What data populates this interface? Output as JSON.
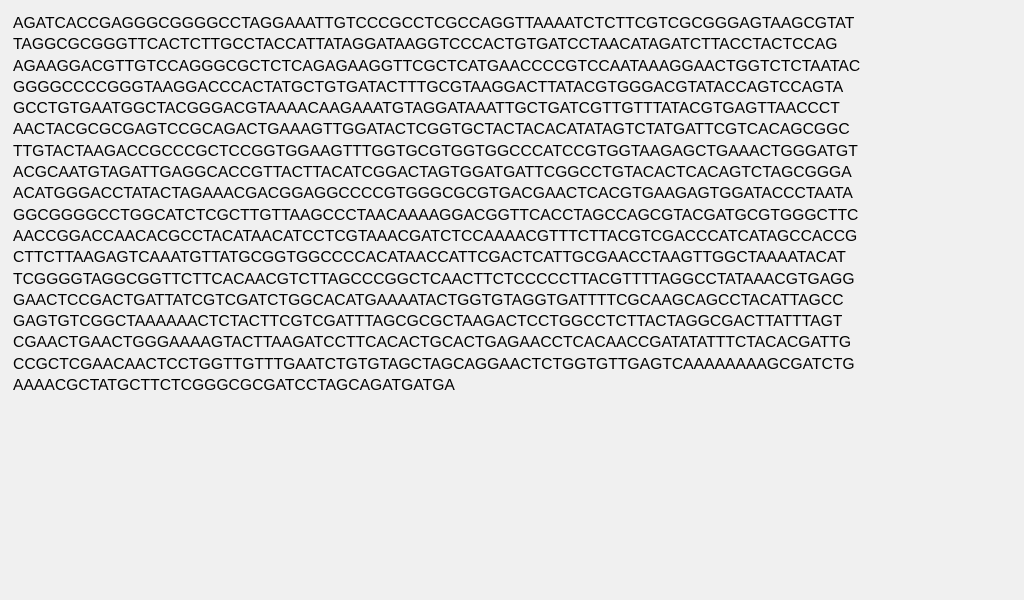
{
  "sequence": {
    "lines": [
      "AGATCACCGAGGGCGGGGCCTAGGAAATTGTCCCGCCTCGCCAGGTTAAAATCTCTTCGTCGCGGGAGTAAGCGTAT",
      "TAGGCGCGGGTTCACTCTTGCCTACCATTATAGGATAAGGTCCCACTGTGATCCTAACATAGATCTTACCTACTCCAG",
      "AGAAGGACGTTGTCCAGGGCGCTCTCAGAGAAGGTTCGCTCATGAACCCCGTCCAATAAAGGAACTGGTCTCTAATAC",
      "GGGGCCCCGGGTAAGGACCCACTATGCTGTGATACTTTGCGTAAGGACTTATACGTGGGACGTATACCAGTCCAGTA",
      "GCCTGTGAATGGCTACGGGACGTAAAACAAGAAATGTAGGATAAATTGCTGATCGTTGTTTATACGTGAGTTAACCCT",
      "AACTACGCGCGAGTCCGCAGACTGAAAGTTGGATACTCGGTGCTACTACACATATAGTCTATGATTCGTCACAGCGGC",
      "TTGTACTAAGACCGCCCGCTCCGGTGGAAGTTTGGTGCGTGGTGGCCCATCCGTGGTAAGAGCTGAAACTGGGATGT",
      "ACGCAATGTAGATTGAGGCACCGTTACTTACATCGGACTAGTGGATGATTCGGCCTGTACACTCACAGTCTAGCGGGA",
      "ACATGGGACCTATACTAGAAACGACGGAGGCCCCGTGGGCGCGTGACGAACTCACGTGAAGAGTGGATACCCTAATA",
      "GGCGGGGCCTGGCATCTCGCTTGTTAAGCCCTAACAAAAGGACGGTTCACCTAGCCAGCGTACGATGCGTGGGCTTC",
      "AACCGGACCAACACGCCTACATAACATCCTCGTAAACGATCTCCAAAACGTTTCTTACGTCGACCCATCATAGCCACCG",
      "CTTCTTAAGAGTCAAATGTTATGCGGTGGCCCCACATAACCATTCGACTCATTGCGAACCTAAGTTGGCTAAAATACAT",
      "TCGGGGTAGGCGGTTCTTCACAACGTCTTAGCCCGGCTCAACTTCTCCCCCTTACGTTTTAGGCCTATAAACGTGAGG",
      "GAACTCCGACTGATTATCGTCGATCTGGCACATGAAAATACTGGTGTAGGTGATTTTCGCAAGCAGCCTACATTAGCC",
      "GAGTGTCGGCTAAAAAACTCTACTTCGTCGATTTAGCGCGCTAAGACTCCTGGCCTCTTACTAGGCGACTTATTTAGT",
      "CGAACTGAACTGGGAAAAGTACTTAAGATCCTTCACACTGCACTGAGAACCTCACAACCGATATATTTCTACACGATTG",
      "CCGCTCGAACAACTCCTGGTTGTTTGAATCTGTGTAGCTAGCAGGAACTCTGGTGTTGAGTCAAAAAAAAGCGATCTG",
      "AAAACGCTATGCTTCTCGGGCGCGATCCTAGCAGATGATGA"
    ]
  },
  "colors": {
    "background": "#f0f0f0",
    "text": "#000000"
  }
}
